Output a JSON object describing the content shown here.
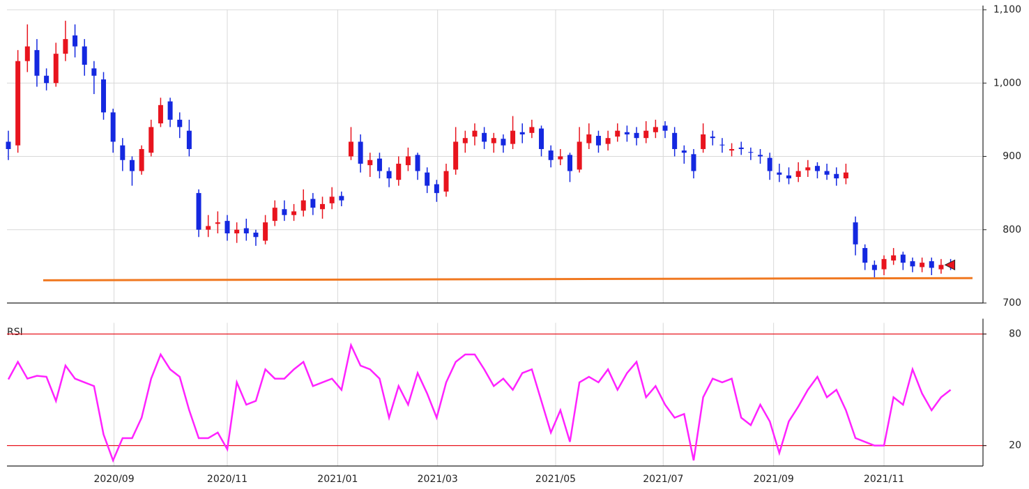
{
  "chart_data": [
    {
      "type": "candlestick",
      "x": [
        0,
        1,
        2,
        3,
        4,
        5,
        6,
        7,
        8,
        9,
        10,
        11,
        12,
        13,
        14,
        15,
        16,
        17,
        18,
        19,
        20,
        21,
        22,
        23,
        24,
        25,
        26,
        27,
        28,
        29,
        30,
        31,
        32,
        33,
        34,
        35,
        36,
        37,
        38,
        39,
        40,
        41,
        42,
        43,
        44,
        45,
        46,
        47,
        48,
        49,
        50,
        51,
        52,
        53,
        54,
        55,
        56,
        57,
        58,
        59,
        60,
        61,
        62,
        63,
        64,
        65,
        66,
        67,
        68,
        69,
        70,
        71,
        72,
        73,
        74,
        75,
        76,
        77,
        78,
        79,
        80,
        81,
        82,
        83,
        84,
        85,
        86,
        87,
        88,
        89,
        90,
        91,
        92,
        93,
        94,
        95,
        96,
        97,
        98,
        99
      ],
      "open": [
        920,
        915,
        1030,
        1045,
        1010,
        1000,
        1040,
        1065,
        1050,
        1020,
        1005,
        960,
        915,
        895,
        880,
        905,
        945,
        975,
        950,
        935,
        850,
        800,
        808,
        812,
        795,
        802,
        796,
        785,
        812,
        828,
        820,
        826,
        842,
        828,
        836,
        846,
        900,
        920,
        888,
        897,
        880,
        868,
        888,
        902,
        878,
        862,
        852,
        882,
        918,
        927,
        932,
        918,
        924,
        917,
        933,
        932,
        938,
        908,
        896,
        902,
        882,
        918,
        928,
        917,
        927,
        933,
        932,
        925,
        933,
        942,
        932,
        908,
        903,
        910,
        927,
        916,
        908,
        912,
        906,
        902,
        898,
        878,
        874,
        872,
        881,
        887,
        880,
        876,
        870,
        810,
        775,
        752,
        746,
        758,
        766,
        757,
        749,
        757,
        746,
        754
      ],
      "high": [
        935,
        1045,
        1080,
        1060,
        1020,
        1055,
        1085,
        1080,
        1060,
        1030,
        1015,
        965,
        925,
        900,
        915,
        950,
        980,
        980,
        960,
        950,
        855,
        820,
        825,
        820,
        810,
        815,
        800,
        820,
        840,
        840,
        835,
        855,
        850,
        845,
        858,
        852,
        940,
        930,
        905,
        905,
        885,
        900,
        912,
        905,
        885,
        868,
        890,
        940,
        935,
        945,
        940,
        932,
        930,
        955,
        945,
        950,
        942,
        915,
        910,
        905,
        940,
        945,
        935,
        935,
        945,
        942,
        940,
        948,
        950,
        948,
        940,
        915,
        910,
        945,
        935,
        925,
        918,
        920,
        912,
        910,
        905,
        890,
        885,
        892,
        895,
        892,
        890,
        885,
        890,
        818,
        780,
        758,
        765,
        775,
        770,
        762,
        762,
        762,
        760,
        760
      ],
      "low": [
        895,
        905,
        1015,
        995,
        990,
        995,
        1030,
        1035,
        1010,
        985,
        950,
        905,
        880,
        860,
        875,
        900,
        940,
        940,
        925,
        900,
        790,
        790,
        795,
        785,
        782,
        785,
        778,
        780,
        805,
        812,
        812,
        818,
        820,
        815,
        828,
        832,
        895,
        878,
        872,
        870,
        858,
        860,
        880,
        868,
        850,
        838,
        845,
        875,
        905,
        915,
        910,
        905,
        905,
        910,
        918,
        925,
        900,
        885,
        888,
        865,
        878,
        910,
        905,
        908,
        920,
        920,
        915,
        918,
        925,
        925,
        900,
        890,
        870,
        905,
        915,
        905,
        900,
        902,
        895,
        890,
        868,
        865,
        862,
        865,
        872,
        870,
        868,
        860,
        862,
        765,
        745,
        735,
        738,
        752,
        745,
        742,
        742,
        738,
        740,
        745
      ],
      "close": [
        910,
        1030,
        1050,
        1010,
        1000,
        1040,
        1060,
        1050,
        1025,
        1010,
        960,
        920,
        895,
        880,
        910,
        940,
        970,
        950,
        940,
        910,
        800,
        805,
        810,
        795,
        800,
        795,
        790,
        810,
        830,
        820,
        825,
        840,
        830,
        835,
        845,
        840,
        920,
        890,
        895,
        880,
        870,
        890,
        900,
        880,
        860,
        850,
        880,
        920,
        925,
        935,
        920,
        925,
        915,
        935,
        930,
        940,
        910,
        895,
        900,
        880,
        920,
        930,
        915,
        925,
        935,
        930,
        925,
        935,
        940,
        935,
        910,
        905,
        880,
        930,
        925,
        915,
        910,
        910,
        905,
        900,
        880,
        875,
        870,
        880,
        885,
        880,
        875,
        870,
        878,
        780,
        755,
        745,
        760,
        765,
        755,
        750,
        755,
        748,
        752,
        752
      ],
      "up_color": "#e8141e",
      "down_color": "#1428e0",
      "xlim": [
        0,
        102.4
      ],
      "xticks": [
        11.1,
        23,
        34.6,
        45.1,
        57.5,
        68.8,
        80.4,
        92
      ],
      "ylim": [
        700,
        1100
      ],
      "yticks": [
        700,
        800,
        900,
        {
          "value": 1000,
          "label": "1,000"
        },
        {
          "value": 1100,
          "label": "1,100"
        }
      ],
      "grid": true,
      "trend_line": {
        "x": [
          3.66,
          101.3
        ],
        "values": [
          731,
          734
        ],
        "color": "#f07820"
      },
      "last_marker_color": "#e8141e"
    },
    {
      "type": "line",
      "title": "RSI",
      "x": [
        0,
        1,
        2,
        3,
        4,
        5,
        6,
        7,
        8,
        9,
        10,
        11,
        12,
        13,
        14,
        15,
        16,
        17,
        18,
        19,
        20,
        21,
        22,
        23,
        24,
        25,
        26,
        27,
        28,
        29,
        30,
        31,
        32,
        33,
        34,
        35,
        36,
        37,
        38,
        39,
        40,
        41,
        42,
        43,
        44,
        45,
        46,
        47,
        48,
        49,
        50,
        51,
        52,
        53,
        54,
        55,
        56,
        57,
        58,
        59,
        60,
        61,
        62,
        63,
        64,
        65,
        66,
        67,
        68,
        69,
        70,
        71,
        72,
        73,
        74,
        75,
        76,
        77,
        78,
        79,
        80,
        81,
        82,
        83,
        84,
        85,
        86,
        87,
        88,
        89,
        90,
        91,
        92,
        93,
        94,
        95,
        96,
        97,
        98,
        99
      ],
      "values": [
        55.6,
        65,
        56,
        57.5,
        57,
        44,
        63,
        56,
        54,
        52,
        26,
        12,
        24,
        24,
        35,
        56,
        69,
        61,
        57,
        39,
        24,
        24,
        27,
        18,
        54,
        42,
        44,
        61,
        56,
        56,
        61,
        65,
        52,
        54,
        56,
        50,
        74,
        63,
        61,
        56,
        35,
        52,
        42,
        59,
        48,
        35,
        54,
        65,
        69,
        69,
        61,
        52,
        56,
        50,
        59,
        61,
        44,
        27,
        39,
        22,
        54,
        57,
        54,
        61,
        50,
        59,
        65,
        46,
        52,
        42,
        35,
        37,
        12,
        46,
        56,
        54,
        56,
        35,
        31,
        42,
        33,
        16,
        33,
        41,
        50,
        57,
        46,
        50,
        39,
        24,
        22,
        20,
        20,
        46,
        42,
        61,
        48,
        39,
        46,
        50
      ],
      "color": "#ff22ff",
      "xlim": [
        0,
        102.4
      ],
      "xticks": [
        {
          "value": 11.1,
          "label": "2020/09"
        },
        {
          "value": 23,
          "label": "2020/11"
        },
        {
          "value": 34.6,
          "label": "2021/01"
        },
        {
          "value": 45.1,
          "label": "2021/03"
        },
        {
          "value": 57.5,
          "label": "2021/05"
        },
        {
          "value": 68.8,
          "label": "2021/07"
        },
        {
          "value": 80.4,
          "label": "2021/09"
        },
        {
          "value": 92,
          "label": "2021/11"
        }
      ],
      "ylim": [
        9,
        86
      ],
      "yticks": [
        20,
        80
      ],
      "level_color": "#e8141e"
    }
  ]
}
